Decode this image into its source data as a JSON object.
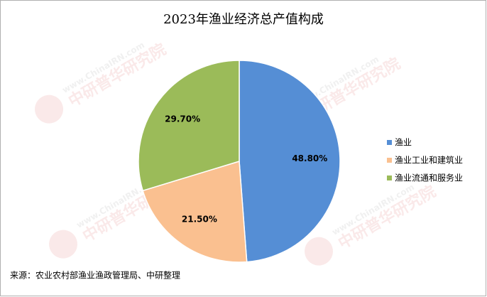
{
  "chart_data": {
    "type": "pie",
    "title": "2023年渔业经济总产值构成",
    "categories": [
      "渔业",
      "渔业工业和建筑业",
      "渔业流通和服务业"
    ],
    "values": [
      48.8,
      21.5,
      29.7
    ],
    "value_labels": [
      "48.80%",
      "21.50%",
      "29.70%"
    ],
    "colors": [
      "#558ed5",
      "#fac090",
      "#9bbb59"
    ],
    "legend": "right",
    "source": "来源：农业农村部渔业渔政管理局、中研整理",
    "watermark": {
      "url": "www.ChinaIRN.com",
      "name": "中研普华研究院"
    }
  }
}
